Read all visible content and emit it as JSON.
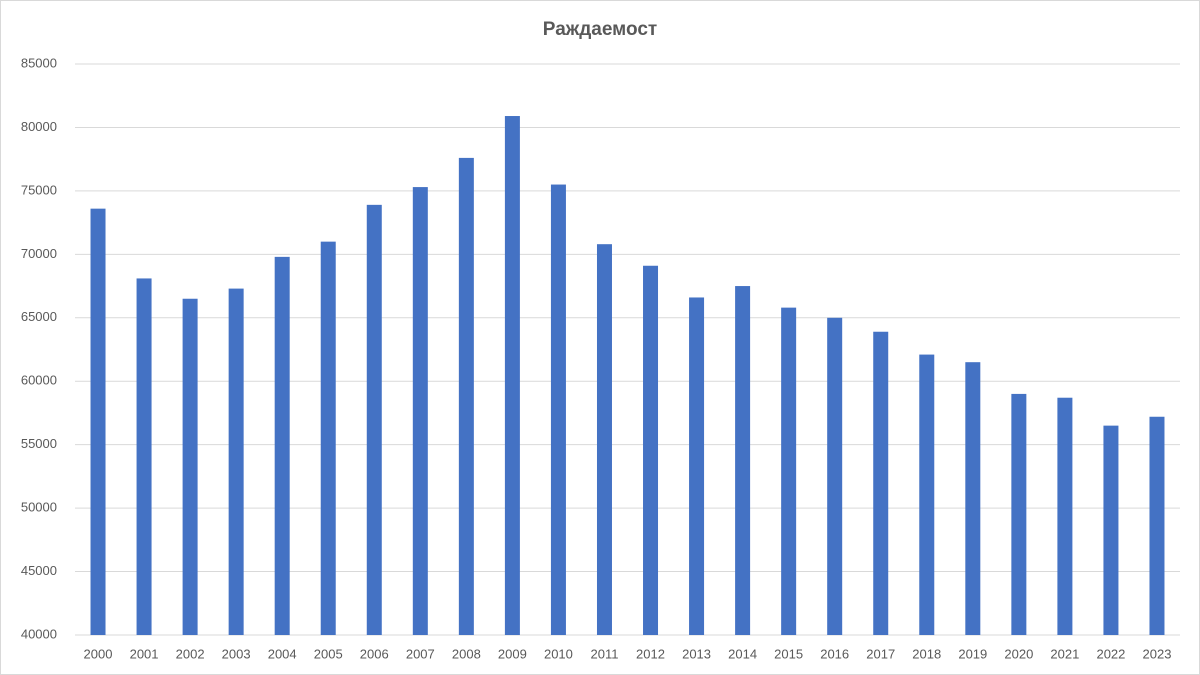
{
  "chart_data": {
    "type": "bar",
    "title": "Раждаемост",
    "categories": [
      "2000",
      "2001",
      "2002",
      "2003",
      "2004",
      "2005",
      "2006",
      "2007",
      "2008",
      "2009",
      "2010",
      "2011",
      "2012",
      "2013",
      "2014",
      "2015",
      "2016",
      "2017",
      "2018",
      "2019",
      "2020",
      "2021",
      "2022",
      "2023"
    ],
    "values": [
      73600,
      68100,
      66500,
      67300,
      69800,
      71000,
      73900,
      75300,
      77600,
      80900,
      75500,
      70800,
      69100,
      66600,
      67500,
      65800,
      65000,
      63900,
      62100,
      61500,
      59000,
      58700,
      56500,
      57200
    ],
    "color": "#4472c4",
    "ylim": [
      40000,
      85000
    ],
    "yticks": [
      40000,
      45000,
      50000,
      55000,
      60000,
      65000,
      70000,
      75000,
      80000,
      85000
    ],
    "grid": true
  }
}
